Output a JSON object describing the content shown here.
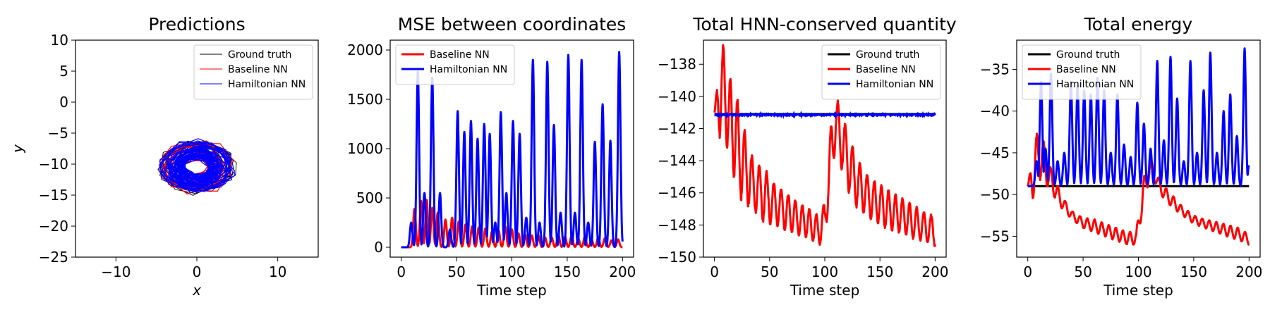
{
  "chart_data": [
    {
      "type": "line",
      "title": "Predictions",
      "xlabel": "x",
      "ylabel": "y",
      "xlim": [
        -15,
        15
      ],
      "ylim": [
        -25,
        10
      ],
      "xticks": [
        -10,
        0,
        10
      ],
      "yticks": [
        -25,
        -20,
        -15,
        -10,
        -5,
        0,
        5,
        10
      ],
      "legend_position": "top-right",
      "trajectory": {
        "center": [
          0,
          -10.5
        ],
        "radius_range": [
          1.5,
          4.5
        ]
      },
      "series": [
        {
          "name": "Ground truth",
          "color": "#000000"
        },
        {
          "name": "Baseline NN",
          "color": "#ff0000"
        },
        {
          "name": "Hamiltonian NN",
          "color": "#0000ff"
        }
      ]
    },
    {
      "type": "line",
      "title": "MSE between coordinates",
      "xlabel": "Time step",
      "ylabel": "",
      "xlim": [
        -10,
        210
      ],
      "ylim": [
        -100,
        2100
      ],
      "xticks": [
        0,
        50,
        100,
        150,
        200
      ],
      "yticks": [
        0,
        500,
        1000,
        1500,
        2000
      ],
      "legend_position": "top-left",
      "series": [
        {
          "name": "Baseline NN",
          "color": "#ff0000",
          "peaks": [
            [
              12,
              390
            ],
            [
              18,
              470
            ],
            [
              23,
              480
            ],
            [
              28,
              400
            ],
            [
              33,
              350
            ],
            [
              40,
              280
            ],
            [
              46,
              300
            ],
            [
              52,
              260
            ],
            [
              58,
              230
            ],
            [
              64,
              210
            ],
            [
              70,
              200
            ],
            [
              76,
              190
            ],
            [
              82,
              160
            ],
            [
              88,
              170
            ],
            [
              94,
              210
            ],
            [
              100,
              180
            ],
            [
              106,
              140
            ],
            [
              112,
              130
            ],
            [
              118,
              120
            ],
            [
              124,
              120
            ],
            [
              130,
              100
            ],
            [
              136,
              100
            ],
            [
              142,
              130
            ],
            [
              148,
              110
            ],
            [
              154,
              120
            ],
            [
              160,
              90
            ],
            [
              166,
              110
            ],
            [
              172,
              80
            ],
            [
              178,
              100
            ],
            [
              184,
              90
            ],
            [
              190,
              70
            ],
            [
              196,
              80
            ]
          ]
        },
        {
          "name": "Hamiltonian NN",
          "color": "#0000ff",
          "peaks": [
            [
              9,
              250
            ],
            [
              15,
              1780
            ],
            [
              21,
              550
            ],
            [
              28,
              1720
            ],
            [
              35,
              550
            ],
            [
              44,
              180
            ],
            [
              51,
              1380
            ],
            [
              57,
              1170
            ],
            [
              63,
              1280
            ],
            [
              69,
              1100
            ],
            [
              75,
              1250
            ],
            [
              80,
              1150
            ],
            [
              85,
              250
            ],
            [
              90,
              1370
            ],
            [
              95,
              550
            ],
            [
              101,
              1280
            ],
            [
              107,
              1150
            ],
            [
              113,
              300
            ],
            [
              119,
              1900
            ],
            [
              125,
              250
            ],
            [
              132,
              1880
            ],
            [
              138,
              1240
            ],
            [
              144,
              350
            ],
            [
              151,
              1950
            ],
            [
              157,
              350
            ],
            [
              163,
              1900
            ],
            [
              169,
              250
            ],
            [
              175,
              1070
            ],
            [
              182,
              1450
            ],
            [
              189,
              1080
            ],
            [
              197,
              1980
            ]
          ]
        }
      ]
    },
    {
      "type": "line",
      "title": "Total HNN-conserved quantity",
      "xlabel": "Time step",
      "ylabel": "",
      "xlim": [
        -10,
        210
      ],
      "ylim": [
        -150,
        -136.5
      ],
      "xticks": [
        0,
        50,
        100,
        150,
        200
      ],
      "yticks": [
        -150,
        -148,
        -146,
        -144,
        -142,
        -140,
        -138
      ],
      "legend_position": "top-right",
      "series": [
        {
          "name": "Ground truth",
          "color": "#000000",
          "value": -141.1
        },
        {
          "name": "Baseline NN",
          "color": "#ff0000",
          "envelope": [
            [
              0,
              -141.0,
              -141.0
            ],
            [
              5,
              -142.5,
              -137.5
            ],
            [
              8,
              -141.0,
              -136.8
            ],
            [
              12,
              -143.5,
              -138.5
            ],
            [
              18,
              -145.0,
              -139.5
            ],
            [
              25,
              -146.5,
              -141.5
            ],
            [
              35,
              -147.0,
              -144.0
            ],
            [
              45,
              -147.8,
              -144.5
            ],
            [
              55,
              -148.0,
              -145.5
            ],
            [
              65,
              -148.3,
              -146.0
            ],
            [
              75,
              -148.6,
              -146.6
            ],
            [
              85,
              -148.8,
              -147.0
            ],
            [
              95,
              -149.2,
              -147.5
            ],
            [
              100,
              -149.0,
              -146.5
            ],
            [
              106,
              -145.0,
              -141.5
            ],
            [
              110,
              -143.0,
              -140.0
            ],
            [
              115,
              -144.5,
              -141.0
            ],
            [
              122,
              -146.0,
              -142.5
            ],
            [
              130,
              -147.0,
              -144.0
            ],
            [
              140,
              -147.5,
              -145.0
            ],
            [
              150,
              -148.0,
              -145.5
            ],
            [
              160,
              -148.3,
              -146.0
            ],
            [
              170,
              -148.5,
              -146.3
            ],
            [
              180,
              -148.8,
              -146.8
            ],
            [
              190,
              -149.0,
              -147.2
            ],
            [
              200,
              -149.3,
              -147.5
            ]
          ]
        },
        {
          "name": "Hamiltonian NN",
          "color": "#0000ff",
          "value": -141.15
        }
      ]
    },
    {
      "type": "line",
      "title": "Total energy",
      "xlabel": "Time step",
      "ylabel": "",
      "xlim": [
        -10,
        210
      ],
      "ylim": [
        -57.5,
        -31.5
      ],
      "xticks": [
        0,
        50,
        100,
        150,
        200
      ],
      "yticks": [
        -55,
        -50,
        -45,
        -40,
        -35
      ],
      "legend_position": "top-left",
      "series": [
        {
          "name": "Ground truth",
          "color": "#000000",
          "value": -49.0
        },
        {
          "name": "Baseline NN",
          "color": "#ff0000",
          "envelope": [
            [
              0,
              -49.0,
              -49.0
            ],
            [
              5,
              -50.5,
              -45.0
            ],
            [
              10,
              -48.0,
              -41.5
            ],
            [
              15,
              -48.5,
              -44.0
            ],
            [
              20,
              -49.5,
              -46.5
            ],
            [
              30,
              -51.5,
              -50.0
            ],
            [
              40,
              -53.0,
              -52.0
            ],
            [
              50,
              -54.0,
              -52.8
            ],
            [
              60,
              -54.5,
              -53.0
            ],
            [
              70,
              -55.0,
              -53.5
            ],
            [
              80,
              -55.5,
              -54.0
            ],
            [
              90,
              -56.0,
              -54.5
            ],
            [
              98,
              -56.0,
              -54.5
            ],
            [
              104,
              -52.0,
              -48.5
            ],
            [
              110,
              -48.0,
              -45.5
            ],
            [
              115,
              -48.5,
              -47.0
            ],
            [
              120,
              -50.0,
              -48.5
            ],
            [
              130,
              -51.5,
              -50.0
            ],
            [
              140,
              -52.5,
              -51.5
            ],
            [
              150,
              -53.5,
              -52.5
            ],
            [
              160,
              -54.0,
              -53.0
            ],
            [
              170,
              -54.5,
              -53.3
            ],
            [
              180,
              -55.0,
              -53.6
            ],
            [
              190,
              -55.4,
              -54.0
            ],
            [
              200,
              -56.0,
              -54.8
            ]
          ]
        },
        {
          "name": "Hamiltonian NN",
          "color": "#0000ff",
          "peaks": [
            [
              8,
              -46.0
            ],
            [
              12,
              -36.5
            ],
            [
              16,
              -44.5
            ],
            [
              21,
              -35.5
            ],
            [
              27,
              -46.0
            ],
            [
              33,
              -45.0
            ],
            [
              39,
              -36.5
            ],
            [
              45,
              -37.0
            ],
            [
              51,
              -37.5
            ],
            [
              57,
              -38.0
            ],
            [
              63,
              -36.0
            ],
            [
              69,
              -37.5
            ],
            [
              75,
              -45.0
            ],
            [
              81,
              -38.0
            ],
            [
              87,
              -44.0
            ],
            [
              93,
              -45.5
            ],
            [
              99,
              -39.0
            ],
            [
              105,
              -41.5
            ],
            [
              111,
              -44.5
            ],
            [
              117,
              -34.0
            ],
            [
              123,
              -43.5
            ],
            [
              129,
              -33.5
            ],
            [
              135,
              -38.5
            ],
            [
              141,
              -46.0
            ],
            [
              147,
              -34.0
            ],
            [
              153,
              -45.0
            ],
            [
              159,
              -37.5
            ],
            [
              165,
              -33.0
            ],
            [
              171,
              -45.0
            ],
            [
              177,
              -40.0
            ],
            [
              183,
              -38.0
            ],
            [
              189,
              -43.0
            ],
            [
              196,
              -32.5
            ],
            [
              200,
              -46.5
            ]
          ]
        }
      ]
    }
  ]
}
